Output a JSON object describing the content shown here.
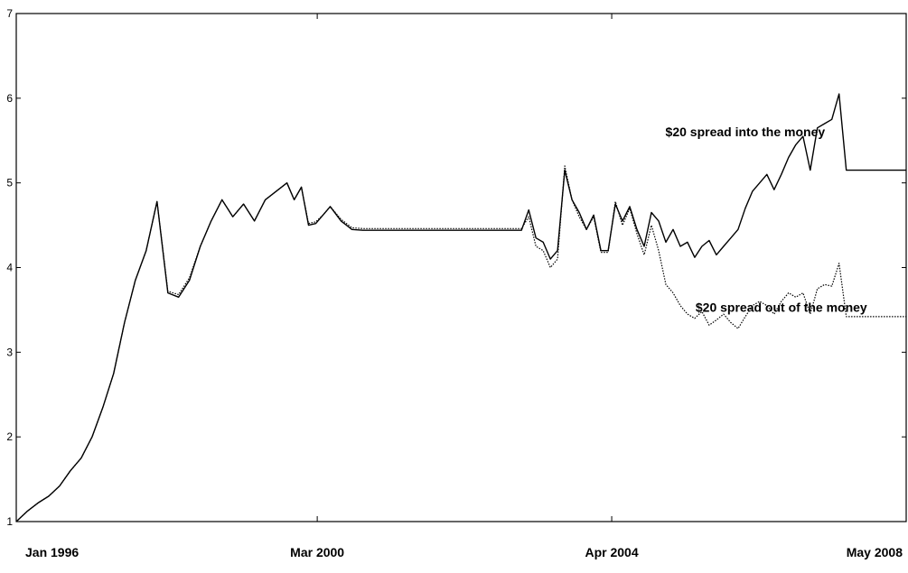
{
  "chart_data": {
    "type": "line",
    "title": "",
    "xlabel": "",
    "ylabel": "",
    "xlim": [
      1996.0,
      2008.33
    ],
    "ylim": [
      1,
      7
    ],
    "y_ticks": [
      1,
      2,
      3,
      4,
      5,
      6,
      7
    ],
    "x_ticks": [
      {
        "value": 1996.0,
        "label": "Jan 1996"
      },
      {
        "value": 2000.17,
        "label": "Mar 2000"
      },
      {
        "value": 2004.25,
        "label": "Apr 2004"
      },
      {
        "value": 2008.33,
        "label": "May 2008"
      }
    ],
    "grid": false,
    "annotations": [
      {
        "text": "$20 spread into the money",
        "x": 2006.1,
        "y": 5.55
      },
      {
        "text": "$20 spread out of the money",
        "x": 2006.6,
        "y": 3.48
      }
    ],
    "series": [
      {
        "color": "#000000",
        "style": "solid",
        "x": [
          1996.0,
          1996.15,
          1996.3,
          1996.45,
          1996.6,
          1996.75,
          1996.9,
          1997.05,
          1997.2,
          1997.35,
          1997.5,
          1997.65,
          1997.8,
          1997.95,
          1998.1,
          1998.25,
          1998.4,
          1998.55,
          1998.7,
          1998.85,
          1999.0,
          1999.15,
          1999.3,
          1999.45,
          1999.6,
          1999.75,
          1999.85,
          1999.95,
          2000.05,
          2000.15,
          2000.25,
          2000.35,
          2000.5,
          2000.65,
          2000.8,
          2001.0,
          2001.5,
          2002.0,
          2002.5,
          2003.0,
          2003.1,
          2003.2,
          2003.3,
          2003.4,
          2003.5,
          2003.6,
          2003.7,
          2003.8,
          2003.9,
          2004.0,
          2004.1,
          2004.2,
          2004.3,
          2004.4,
          2004.5,
          2004.6,
          2004.7,
          2004.8,
          2004.9,
          2005.0,
          2005.1,
          2005.2,
          2005.3,
          2005.4,
          2005.5,
          2005.6,
          2005.7,
          2005.8,
          2005.9,
          2006.0,
          2006.1,
          2006.2,
          2006.3,
          2006.4,
          2006.5,
          2006.6,
          2006.7,
          2006.8,
          2006.9,
          2007.0,
          2007.1,
          2007.2,
          2007.3,
          2007.4,
          2007.5,
          2007.6,
          2007.7,
          2007.8,
          2007.9,
          2008.0,
          2008.33
        ],
        "values": [
          1.0,
          1.12,
          1.22,
          1.3,
          1.42,
          1.6,
          1.75,
          2.0,
          2.35,
          2.75,
          3.35,
          3.85,
          4.2,
          4.78,
          3.7,
          3.65,
          3.85,
          4.25,
          4.55,
          4.8,
          4.6,
          4.75,
          4.55,
          4.8,
          4.9,
          5.0,
          4.8,
          4.95,
          4.5,
          4.52,
          4.62,
          4.72,
          4.55,
          4.45,
          4.44,
          4.44,
          4.44,
          4.44,
          4.44,
          4.44,
          4.68,
          4.35,
          4.3,
          4.1,
          4.2,
          5.15,
          4.8,
          4.65,
          4.45,
          4.62,
          4.2,
          4.2,
          4.75,
          4.55,
          4.72,
          4.45,
          4.25,
          4.65,
          4.55,
          4.3,
          4.45,
          4.25,
          4.3,
          4.12,
          4.25,
          4.32,
          4.15,
          4.25,
          4.35,
          4.45,
          4.7,
          4.9,
          5.0,
          5.1,
          4.92,
          5.1,
          5.3,
          5.45,
          5.55,
          5.15,
          5.65,
          5.7,
          5.75,
          6.05,
          5.15,
          5.15,
          5.15,
          5.15,
          5.15,
          5.15,
          5.15
        ]
      },
      {
        "color": "#000000",
        "style": "dotted",
        "x": [
          1996.0,
          1996.15,
          1996.3,
          1996.45,
          1996.6,
          1996.75,
          1996.9,
          1997.05,
          1997.2,
          1997.35,
          1997.5,
          1997.65,
          1997.8,
          1997.95,
          1998.1,
          1998.25,
          1998.4,
          1998.55,
          1998.7,
          1998.85,
          1999.0,
          1999.15,
          1999.3,
          1999.45,
          1999.6,
          1999.75,
          1999.85,
          1999.95,
          2000.05,
          2000.15,
          2000.25,
          2000.35,
          2000.5,
          2000.65,
          2000.8,
          2001.0,
          2001.5,
          2002.0,
          2002.5,
          2003.0,
          2003.1,
          2003.2,
          2003.3,
          2003.4,
          2003.5,
          2003.6,
          2003.7,
          2003.8,
          2003.9,
          2004.0,
          2004.1,
          2004.2,
          2004.3,
          2004.4,
          2004.5,
          2004.6,
          2004.7,
          2004.8,
          2004.9,
          2005.0,
          2005.1,
          2005.2,
          2005.3,
          2005.4,
          2005.5,
          2005.6,
          2005.7,
          2005.8,
          2005.9,
          2006.0,
          2006.1,
          2006.2,
          2006.3,
          2006.4,
          2006.5,
          2006.6,
          2006.7,
          2006.8,
          2006.9,
          2007.0,
          2007.1,
          2007.2,
          2007.3,
          2007.4,
          2007.5,
          2007.6,
          2007.7,
          2007.8,
          2007.9,
          2008.0,
          2008.33
        ],
        "values": [
          1.0,
          1.12,
          1.22,
          1.3,
          1.42,
          1.6,
          1.75,
          2.0,
          2.35,
          2.75,
          3.35,
          3.85,
          4.2,
          4.78,
          3.72,
          3.68,
          3.88,
          4.25,
          4.55,
          4.8,
          4.6,
          4.75,
          4.55,
          4.8,
          4.9,
          5.0,
          4.8,
          4.95,
          4.52,
          4.54,
          4.62,
          4.72,
          4.57,
          4.47,
          4.46,
          4.46,
          4.46,
          4.46,
          4.46,
          4.46,
          4.6,
          4.25,
          4.2,
          4.0,
          4.1,
          5.2,
          4.8,
          4.6,
          4.45,
          4.6,
          4.18,
          4.18,
          4.78,
          4.5,
          4.7,
          4.4,
          4.15,
          4.5,
          4.2,
          3.8,
          3.7,
          3.55,
          3.45,
          3.4,
          3.48,
          3.32,
          3.38,
          3.45,
          3.35,
          3.28,
          3.42,
          3.55,
          3.6,
          3.55,
          3.45,
          3.6,
          3.7,
          3.65,
          3.7,
          3.45,
          3.75,
          3.8,
          3.78,
          4.05,
          3.42,
          3.42,
          3.42,
          3.42,
          3.42,
          3.42,
          3.42
        ]
      }
    ]
  }
}
